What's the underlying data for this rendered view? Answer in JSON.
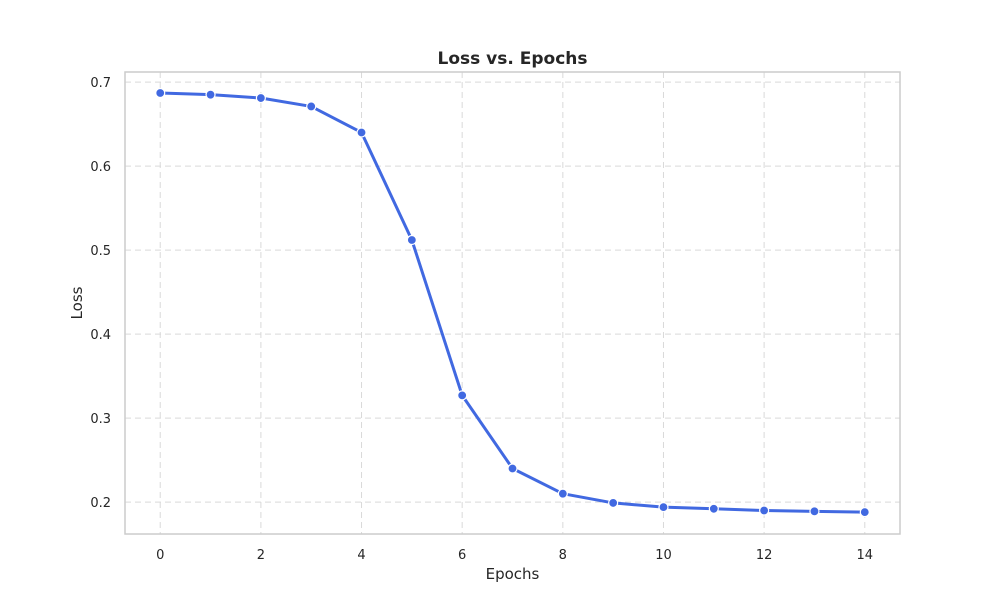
{
  "chart_data": {
    "type": "line",
    "title": "Loss vs. Epochs",
    "xlabel": "Epochs",
    "ylabel": "Loss",
    "xlim": [
      -0.7,
      14.7
    ],
    "ylim": [
      0.162,
      0.712
    ],
    "xticks": [
      0,
      2,
      4,
      6,
      8,
      10,
      12,
      14
    ],
    "yticks": [
      0.2,
      0.3,
      0.4,
      0.5,
      0.6,
      0.7
    ],
    "ytick_labels": [
      "0.2",
      "0.3",
      "0.4",
      "0.5",
      "0.6",
      "0.7"
    ],
    "grid": true,
    "grid_style": "dashed",
    "line_color": "#4169E1",
    "x": [
      0,
      1,
      2,
      3,
      4,
      5,
      6,
      7,
      8,
      9,
      10,
      11,
      12,
      13,
      14
    ],
    "series": [
      {
        "values": [
          0.687,
          0.685,
          0.681,
          0.671,
          0.64,
          0.512,
          0.327,
          0.24,
          0.21,
          0.199,
          0.194,
          0.192,
          0.19,
          0.189,
          0.188
        ]
      }
    ]
  }
}
